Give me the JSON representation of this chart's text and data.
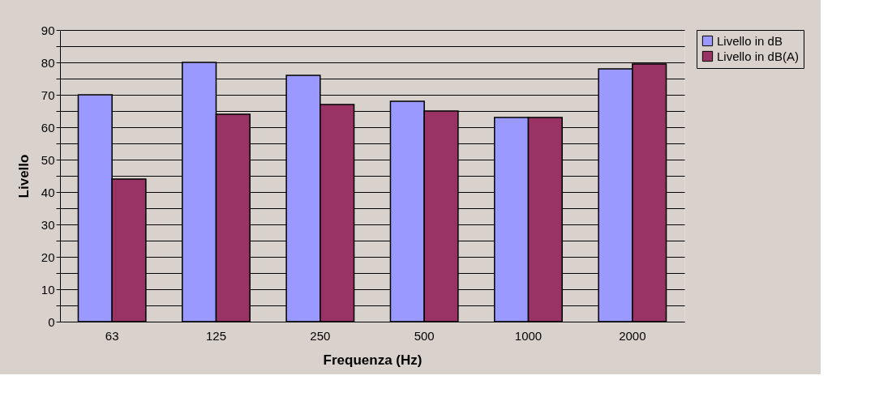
{
  "chart_data": {
    "type": "bar",
    "xlabel": "Frequenza (Hz)",
    "ylabel": "Livello",
    "categories": [
      "63",
      "125",
      "250",
      "500",
      "1000",
      "2000"
    ],
    "series": [
      {
        "name": "Livello in dB",
        "color": "#9999ff",
        "values": [
          70,
          80,
          76,
          68,
          63,
          78
        ]
      },
      {
        "name": "Livello in dB(A)",
        "color": "#993366",
        "values": [
          44,
          64,
          67,
          65,
          63,
          79.5
        ]
      }
    ],
    "ylim": [
      0,
      90
    ],
    "yticks": [
      0,
      {
        "value": 5,
        "label": null
      },
      10,
      {
        "value": 15,
        "label": null
      },
      20,
      {
        "value": 25,
        "label": null
      },
      30,
      {
        "value": 35,
        "label": null
      },
      40,
      {
        "value": 45,
        "label": null
      },
      50,
      {
        "value": 55,
        "label": null
      },
      60,
      {
        "value": 65,
        "label": null
      },
      70,
      {
        "value": 75,
        "label": null
      },
      80,
      {
        "value": 85,
        "label": null
      },
      90
    ],
    "grid": "y",
    "legend": "right"
  }
}
